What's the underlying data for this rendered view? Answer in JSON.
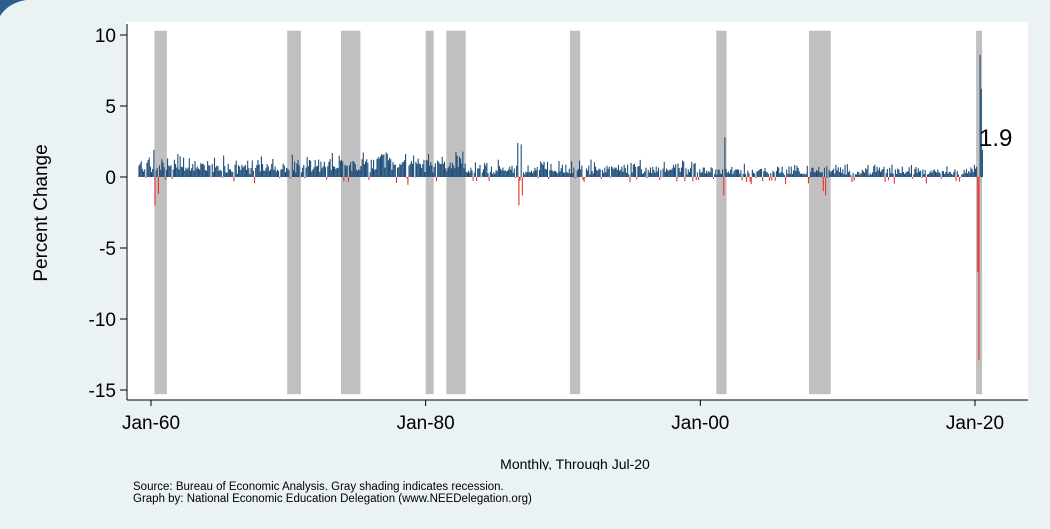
{
  "chart_data": {
    "type": "bar",
    "title": "",
    "ylabel": "Percent Change",
    "xlabel": "Monthly, Through Jul-20",
    "x_range": [
      "1959-02",
      "2020-07"
    ],
    "ylim": [
      -15.5,
      10.5
    ],
    "y_ticks": [
      10,
      5,
      0,
      -5,
      -10,
      -15
    ],
    "y_tick_labels": [
      "10",
      "5",
      "0",
      "-5",
      "-10",
      "-15"
    ],
    "x_ticks": [
      {
        "date": "1960-01",
        "label": "Jan-60"
      },
      {
        "date": "1980-01",
        "label": "Jan-80"
      },
      {
        "date": "2000-01",
        "label": "Jan-00"
      },
      {
        "date": "2020-01",
        "label": "Jan-20"
      }
    ],
    "grid": false,
    "colors": {
      "positive": "#1f4e79",
      "negative": "#e8332a",
      "recession": "#c0c0c0"
    },
    "recessions": [
      {
        "start": "1960-04",
        "end": "1961-02"
      },
      {
        "start": "1969-12",
        "end": "1970-11"
      },
      {
        "start": "1973-11",
        "end": "1975-03"
      },
      {
        "start": "1980-01",
        "end": "1980-07"
      },
      {
        "start": "1981-07",
        "end": "1982-11"
      },
      {
        "start": "1990-07",
        "end": "1991-03"
      },
      {
        "start": "2001-03",
        "end": "2001-11"
      },
      {
        "start": "2007-12",
        "end": "2009-06"
      },
      {
        "start": "2020-02",
        "end": "2020-04"
      }
    ],
    "series": [
      {
        "values_by_period": [
          {
            "from": "1959-02",
            "to": "1969-12",
            "typical_range": [
              -0.5,
              1.7
            ]
          },
          {
            "from": "1970-01",
            "to": "1982-12",
            "typical_range": [
              -0.6,
              2.0
            ]
          },
          {
            "from": "1983-01",
            "to": "1999-12",
            "typical_range": [
              -0.4,
              1.3
            ]
          },
          {
            "from": "2000-01",
            "to": "2019-12",
            "typical_range": [
              -0.5,
              1.0
            ]
          }
        ],
        "notable_points": [
          {
            "date": "1960-03",
            "value": 1.9
          },
          {
            "date": "1960-04",
            "value": -2.0
          },
          {
            "date": "1960-07",
            "value": -1.2
          },
          {
            "date": "1986-09",
            "value": 2.4
          },
          {
            "date": "1986-10",
            "value": -2.0
          },
          {
            "date": "1986-12",
            "value": 2.3
          },
          {
            "date": "1987-01",
            "value": -1.3
          },
          {
            "date": "2001-09",
            "value": -1.3
          },
          {
            "date": "2001-10",
            "value": 2.8
          },
          {
            "date": "2008-12",
            "value": -1.0
          },
          {
            "date": "2009-02",
            "value": -1.3
          },
          {
            "date": "2020-03",
            "value": -6.7
          },
          {
            "date": "2020-04",
            "value": -12.9
          },
          {
            "date": "2020-05",
            "value": 8.6
          },
          {
            "date": "2020-06",
            "value": 6.2
          },
          {
            "date": "2020-07",
            "value": 1.9
          }
        ]
      }
    ],
    "end_label": "1.9",
    "source_note": "Source:  Bureau of Economic Analysis.  Gray shading indicates recession.",
    "credit_note": "Graph by: National Economic Education Delegation (www.NEEDelegation.org)"
  }
}
